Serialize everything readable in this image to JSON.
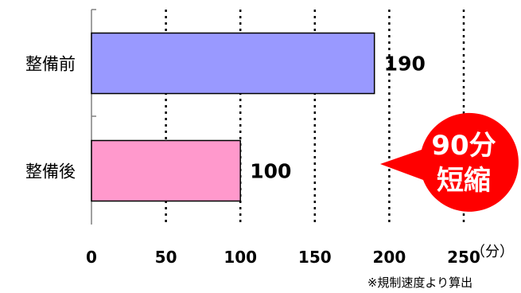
{
  "chart_data": {
    "type": "bar",
    "orientation": "horizontal",
    "categories": [
      "整備前",
      "整備後"
    ],
    "values": [
      190,
      100
    ],
    "bar_colors": [
      "#9999ff",
      "#ff99cc"
    ],
    "xlim": [
      0,
      250
    ],
    "xticks": [
      "0",
      "50",
      "100",
      "150",
      "200",
      "250"
    ],
    "x_unit": "（分）",
    "grid": "vertical-dotted",
    "data_labels": [
      "190",
      "100"
    ]
  },
  "callout": {
    "line1": "90分",
    "line2": "短縮",
    "color": "#ff0000"
  },
  "note": "※規制速度より算出"
}
